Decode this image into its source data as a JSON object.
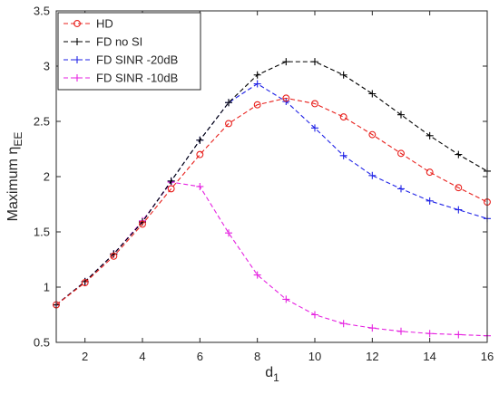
{
  "chart_data": {
    "type": "line",
    "title": "",
    "xlabel": "d",
    "xlabel_sub": "1",
    "ylabel": "Maximum η",
    "ylabel_sub": "EE",
    "xlim": [
      1,
      16
    ],
    "ylim": [
      0.5,
      3.5
    ],
    "xticks": [
      2,
      4,
      6,
      8,
      10,
      12,
      14,
      16
    ],
    "yticks": [
      0.5,
      1,
      1.5,
      2,
      2.5,
      3,
      3.5
    ],
    "grid": false,
    "legend_position": "top-left",
    "x": [
      1,
      2,
      3,
      4,
      5,
      6,
      7,
      8,
      9,
      10,
      11,
      12,
      13,
      14,
      15,
      16
    ],
    "series": [
      {
        "name": "HD",
        "color": "#e8201c",
        "marker": "circle",
        "values": [
          0.84,
          1.04,
          1.28,
          1.57,
          1.89,
          2.2,
          2.48,
          2.65,
          2.71,
          2.66,
          2.54,
          2.38,
          2.21,
          2.04,
          1.9,
          1.77
        ]
      },
      {
        "name": "FD no SI",
        "color": "#000000",
        "marker": "plus",
        "values": [
          0.84,
          1.05,
          1.3,
          1.59,
          1.96,
          2.33,
          2.67,
          2.92,
          3.04,
          3.04,
          2.92,
          2.75,
          2.56,
          2.37,
          2.2,
          2.05
        ]
      },
      {
        "name": "FD SINR -20dB",
        "color": "#1f22e6",
        "marker": "plus",
        "values": [
          0.84,
          1.05,
          1.3,
          1.59,
          1.96,
          2.33,
          2.67,
          2.84,
          2.68,
          2.44,
          2.19,
          2.01,
          1.89,
          1.78,
          1.7,
          1.62
        ]
      },
      {
        "name": "FD SINR -10dB",
        "color": "#e521e0",
        "marker": "plus",
        "values": [
          0.84,
          1.05,
          1.3,
          1.6,
          1.95,
          1.91,
          1.49,
          1.11,
          0.89,
          0.75,
          0.67,
          0.63,
          0.6,
          0.58,
          0.57,
          0.56
        ]
      }
    ]
  }
}
